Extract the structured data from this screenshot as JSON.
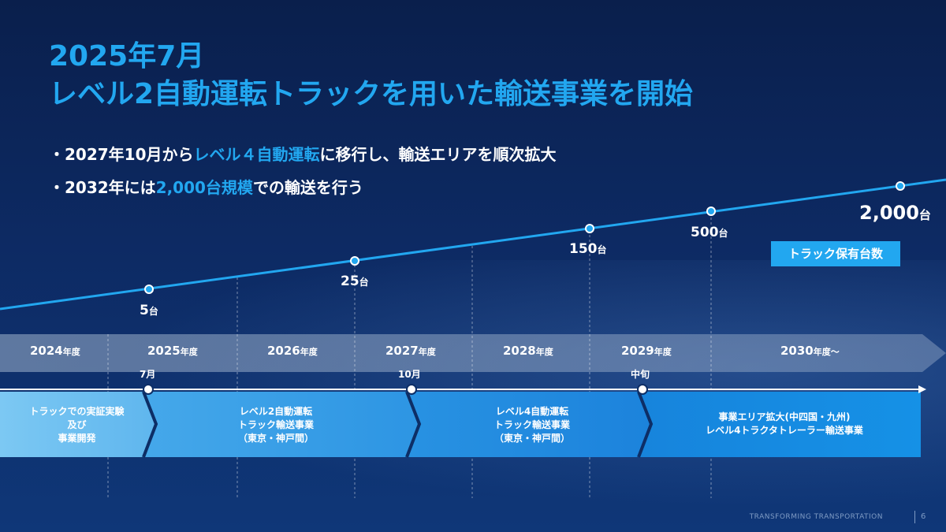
{
  "title": {
    "line1": "2025年7月",
    "line2": "レベル2自動運転トラックを用いた輸送事業を開始"
  },
  "bullets": [
    {
      "prefix": "・2027年10月から",
      "highlight": "レベル４自動運転",
      "suffix": "に移行し、輸送エリアを順次拡大"
    },
    {
      "prefix": "・2032年には",
      "highlight": "2,000台規模",
      "suffix": "での輸送を行う"
    }
  ],
  "truck_counts": [
    {
      "value": "5",
      "unit": "台"
    },
    {
      "value": "25",
      "unit": "台"
    },
    {
      "value": "150",
      "unit": "台"
    },
    {
      "value": "500",
      "unit": "台"
    },
    {
      "value": "2,000",
      "unit": "台"
    }
  ],
  "legend_label": "トラック保有台数",
  "years": [
    {
      "value": "2024",
      "unit": "年度"
    },
    {
      "value": "2025",
      "unit": "年度"
    },
    {
      "value": "2026",
      "unit": "年度"
    },
    {
      "value": "2027",
      "unit": "年度"
    },
    {
      "value": "2028",
      "unit": "年度"
    },
    {
      "value": "2029",
      "unit": "年度"
    },
    {
      "value": "2030",
      "unit": "年度〜"
    }
  ],
  "milestones": [
    "7月",
    "10月",
    "中旬"
  ],
  "phases": [
    {
      "lines": [
        "トラックでの実証実験",
        "及び",
        "事業開発"
      ]
    },
    {
      "lines": [
        "レベル2自動運転",
        "トラック輸送事業",
        "（東京・神戸間）"
      ]
    },
    {
      "lines": [
        "レベル4自動運転",
        "トラック輸送事業",
        "（東京・神戸間）"
      ]
    },
    {
      "lines": [
        "事業エリア拡大(中四国・九州)",
        "レベル4トラクタトレーラー輸送事業"
      ]
    }
  ],
  "colors": {
    "accent": "#22a7f0",
    "background": "#0a2354",
    "white": "#ffffff"
  },
  "footer": {
    "brand": "TRANSFORMING TRANSPORTATION",
    "page": "6"
  }
}
